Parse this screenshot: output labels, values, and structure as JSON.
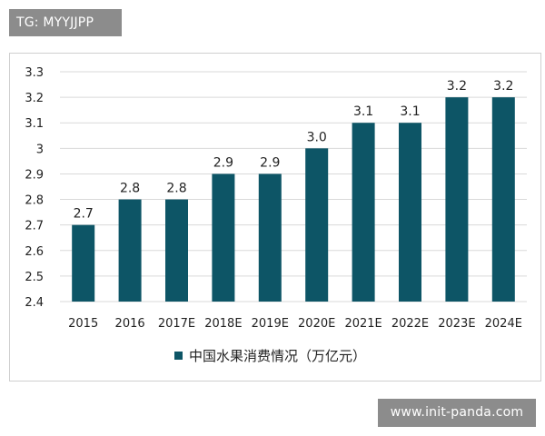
{
  "watermarks": {
    "top": "TG: MYYJJPP",
    "bottom": "www.init-panda.com"
  },
  "chart_data": {
    "type": "bar",
    "categories": [
      "2015",
      "2016",
      "2017E",
      "2018E",
      "2019E",
      "2020E",
      "2021E",
      "2022E",
      "2023E",
      "2024E"
    ],
    "series": [
      {
        "name": "中国水果消费情况（万亿元）",
        "values": [
          2.7,
          2.8,
          2.8,
          2.9,
          2.9,
          3.0,
          3.1,
          3.1,
          3.2,
          3.2
        ],
        "labels": [
          "2.7",
          "2.8",
          "2.8",
          "2.9",
          "2.9",
          "3.0",
          "3.1",
          "3.1",
          "3.2",
          "3.2"
        ]
      }
    ],
    "y_ticks": [
      "2.4",
      "2.5",
      "2.6",
      "2.7",
      "2.8",
      "2.9",
      "3",
      "3.1",
      "3.2",
      "3.3"
    ],
    "ylim": [
      2.4,
      3.3
    ],
    "grid": true,
    "legend_position": "bottom",
    "colors": {
      "bar": "#0d5566",
      "grid": "#d9d9d9"
    }
  }
}
